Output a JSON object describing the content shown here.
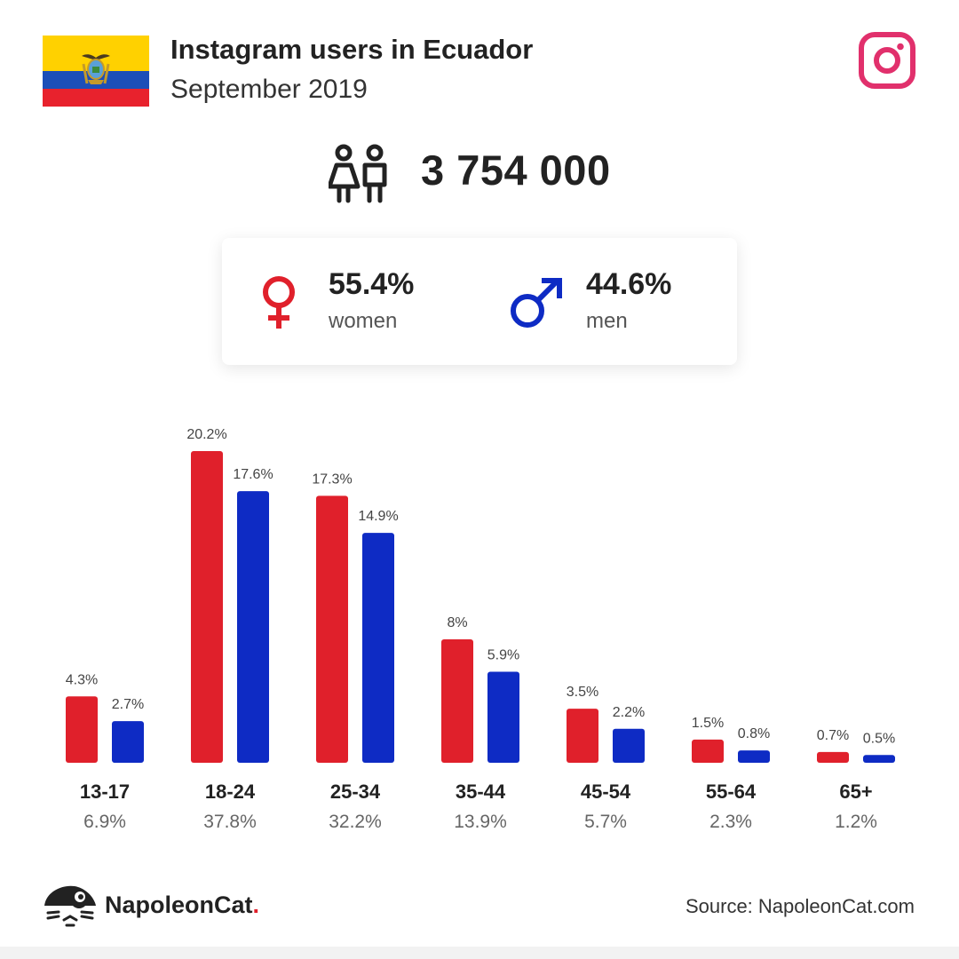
{
  "header": {
    "title": "Instagram users in Ecuador",
    "subtitle": "September 2019"
  },
  "total": {
    "value": "3 754 000"
  },
  "gender": {
    "women": {
      "pct": "55.4%",
      "label": "women"
    },
    "men": {
      "pct": "44.6%",
      "label": "men"
    }
  },
  "colors": {
    "women": "#e0202b",
    "men": "#0e2bc4",
    "instagram": "#e1306c"
  },
  "icons": {
    "flag": "ecuador-flag-icon",
    "instagram": "instagram-icon",
    "people": "people-icon",
    "female": "female-symbol-icon",
    "male": "male-symbol-icon",
    "logo": "napoleoncat-logo-icon"
  },
  "chart_data": {
    "type": "bar",
    "categories": [
      "13-17",
      "18-24",
      "25-34",
      "35-44",
      "45-54",
      "55-64",
      "65+"
    ],
    "category_totals": [
      "6.9%",
      "37.8%",
      "32.2%",
      "13.9%",
      "5.7%",
      "2.3%",
      "1.2%"
    ],
    "series": [
      {
        "values": [
          4.3,
          20.2,
          17.3,
          8,
          3.5,
          1.5,
          0.7
        ],
        "labels": [
          "4.3%",
          "20.2%",
          "17.3%",
          "8%",
          "3.5%",
          "1.5%",
          "0.7%"
        ]
      },
      {
        "values": [
          2.7,
          17.6,
          14.9,
          5.9,
          2.2,
          0.8,
          0.5
        ],
        "labels": [
          "2.7%",
          "17.6%",
          "14.9%",
          "5.9%",
          "2.2%",
          "0.8%",
          "0.5%"
        ]
      }
    ],
    "ylim": [
      0,
      20.2
    ],
    "grid": false,
    "legend": "none"
  },
  "footer": {
    "brand": "NapoleonCat",
    "brand_dot": ".",
    "source": "Source: NapoleonCat.com"
  }
}
